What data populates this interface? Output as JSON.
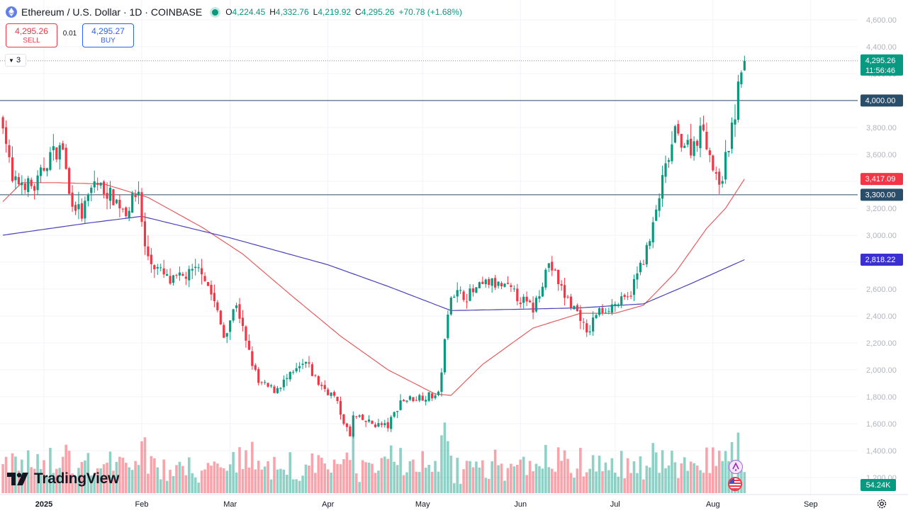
{
  "header": {
    "title": "Ethereum / U.S. Dollar · 1D · COINBASE",
    "ohlc": [
      {
        "k": "O",
        "v": "4,224.45"
      },
      {
        "k": "H",
        "v": "4,332.76"
      },
      {
        "k": "L",
        "v": "4,219.92"
      },
      {
        "k": "C",
        "v": "4,295.26"
      }
    ],
    "change": "+70.78 (+1.68%)"
  },
  "trade": {
    "sell_price": "4,295.26",
    "sell_label": "SELL",
    "spread": "0.01",
    "buy_price": "4,295.27",
    "buy_label": "BUY"
  },
  "collapse_count": "3",
  "logo_text": "TradingView",
  "icons": [
    "ethereum-icon",
    "chevron-down-icon",
    "tradingview-logo-icon",
    "settings-gear-icon",
    "news-event-icon",
    "us-flag-event-icon"
  ],
  "colors": {
    "up": "#089981",
    "down": "#f23645",
    "ma50": "#e35d5d",
    "ma200": "#4a40b8",
    "level": "#2a4d69"
  },
  "chart_data": {
    "type": "candlestick",
    "y_ticks": [
      1200,
      1400,
      1600,
      1800,
      2000,
      2200,
      2400,
      2600,
      2800,
      3000,
      3200,
      3400,
      3600,
      3800,
      4000,
      4200,
      4400,
      4600
    ],
    "y_tick_labels": [
      "1,200.00",
      "1,400.00",
      "1,600.00",
      "1,800.00",
      "2,000.00",
      "2,200.00",
      "2,400.00",
      "2,600.00",
      "2,800.00",
      "3,000.00",
      "3,200.00",
      "3,400.00",
      "3,600.00",
      "3,800.00",
      "4,000.00",
      "4,200.00",
      "4,400.00",
      "4,600.00"
    ],
    "x_labels": [
      "2025",
      "Feb",
      "Mar",
      "Apr",
      "May",
      "Jun",
      "Jul",
      "Aug",
      "Sep"
    ],
    "x_label_dates": [
      "2025-01-01",
      "2025-02-01",
      "2025-03-01",
      "2025-04-01",
      "2025-05-01",
      "2025-06-01",
      "2025-07-01",
      "2025-08-01",
      "2025-09-01"
    ],
    "price_levels": [
      {
        "value": 4000,
        "label": "4,000.00",
        "color": "#2a4d69"
      },
      {
        "value": 3300,
        "label": "3,300.00",
        "color": "#2a4d69"
      }
    ],
    "last_price": {
      "value": 4295.26,
      "label": "4,295.26",
      "countdown": "11:56:46",
      "color": "#089981"
    },
    "ma_labels": [
      {
        "value": 3417.09,
        "label": "3,417.09",
        "color": "#f23645"
      },
      {
        "value": 2818.22,
        "label": "2,818.22",
        "color": "#3a2fd1"
      }
    ],
    "ma50_anchors": [
      [
        "2024-12-19",
        3250
      ],
      [
        "2024-12-25",
        3390
      ],
      [
        "2025-01-05",
        3390
      ],
      [
        "2025-01-20",
        3380
      ],
      [
        "2025-02-03",
        3280
      ],
      [
        "2025-02-20",
        3060
      ],
      [
        "2025-03-05",
        2860
      ],
      [
        "2025-03-20",
        2560
      ],
      [
        "2025-04-05",
        2250
      ],
      [
        "2025-04-20",
        2000
      ],
      [
        "2025-05-05",
        1820
      ],
      [
        "2025-05-10",
        1810
      ],
      [
        "2025-05-20",
        2040
      ],
      [
        "2025-06-05",
        2310
      ],
      [
        "2025-06-20",
        2420
      ],
      [
        "2025-07-01",
        2420
      ],
      [
        "2025-07-10",
        2480
      ],
      [
        "2025-07-20",
        2720
      ],
      [
        "2025-07-30",
        3050
      ],
      [
        "2025-08-05",
        3200
      ],
      [
        "2025-08-11",
        3417
      ]
    ],
    "ma200_anchors": [
      [
        "2024-12-19",
        3000
      ],
      [
        "2025-01-15",
        3090
      ],
      [
        "2025-02-01",
        3140
      ],
      [
        "2025-03-01",
        2980
      ],
      [
        "2025-04-01",
        2780
      ],
      [
        "2025-04-20",
        2620
      ],
      [
        "2025-05-10",
        2440
      ],
      [
        "2025-06-01",
        2450
      ],
      [
        "2025-06-20",
        2460
      ],
      [
        "2025-07-10",
        2490
      ],
      [
        "2025-07-25",
        2640
      ],
      [
        "2025-08-11",
        2818
      ]
    ],
    "close_anchors": [
      [
        "2024-12-19",
        3860
      ],
      [
        "2024-12-22",
        3380
      ],
      [
        "2024-12-25",
        3400
      ],
      [
        "2024-12-29",
        3350
      ],
      [
        "2025-01-03",
        3600
      ],
      [
        "2025-01-07",
        3650
      ],
      [
        "2025-01-09",
        3300
      ],
      [
        "2025-01-13",
        3150
      ],
      [
        "2025-01-17",
        3400
      ],
      [
        "2025-01-22",
        3300
      ],
      [
        "2025-01-27",
        3180
      ],
      [
        "2025-01-31",
        3330
      ],
      [
        "2025-02-02",
        2900
      ],
      [
        "2025-02-04",
        2800
      ],
      [
        "2025-02-10",
        2650
      ],
      [
        "2025-02-15",
        2700
      ],
      [
        "2025-02-20",
        2750
      ],
      [
        "2025-02-24",
        2500
      ],
      [
        "2025-02-27",
        2250
      ],
      [
        "2025-03-03",
        2500
      ],
      [
        "2025-03-06",
        2200
      ],
      [
        "2025-03-10",
        1900
      ],
      [
        "2025-03-15",
        1850
      ],
      [
        "2025-03-20",
        1950
      ],
      [
        "2025-03-25",
        2050
      ],
      [
        "2025-03-29",
        1900
      ],
      [
        "2025-04-03",
        1800
      ],
      [
        "2025-04-08",
        1500
      ],
      [
        "2025-04-09",
        1650
      ],
      [
        "2025-04-15",
        1600
      ],
      [
        "2025-04-20",
        1580
      ],
      [
        "2025-04-24",
        1770
      ],
      [
        "2025-04-30",
        1800
      ],
      [
        "2025-05-06",
        1810
      ],
      [
        "2025-05-08",
        2200
      ],
      [
        "2025-05-10",
        2580
      ],
      [
        "2025-05-15",
        2550
      ],
      [
        "2025-05-22",
        2650
      ],
      [
        "2025-05-28",
        2600
      ],
      [
        "2025-06-05",
        2450
      ],
      [
        "2025-06-10",
        2800
      ],
      [
        "2025-06-15",
        2550
      ],
      [
        "2025-06-20",
        2400
      ],
      [
        "2025-06-22",
        2250
      ],
      [
        "2025-06-25",
        2420
      ],
      [
        "2025-06-30",
        2480
      ],
      [
        "2025-07-05",
        2520
      ],
      [
        "2025-07-09",
        2770
      ],
      [
        "2025-07-12",
        2950
      ],
      [
        "2025-07-16",
        3400
      ],
      [
        "2025-07-20",
        3750
      ],
      [
        "2025-07-25",
        3650
      ],
      [
        "2025-07-29",
        3800
      ],
      [
        "2025-08-02",
        3400
      ],
      [
        "2025-08-04",
        3450
      ],
      [
        "2025-08-08",
        3900
      ],
      [
        "2025-08-10",
        4250
      ],
      [
        "2025-08-11",
        4295
      ]
    ],
    "volume_label": "54.24K"
  }
}
